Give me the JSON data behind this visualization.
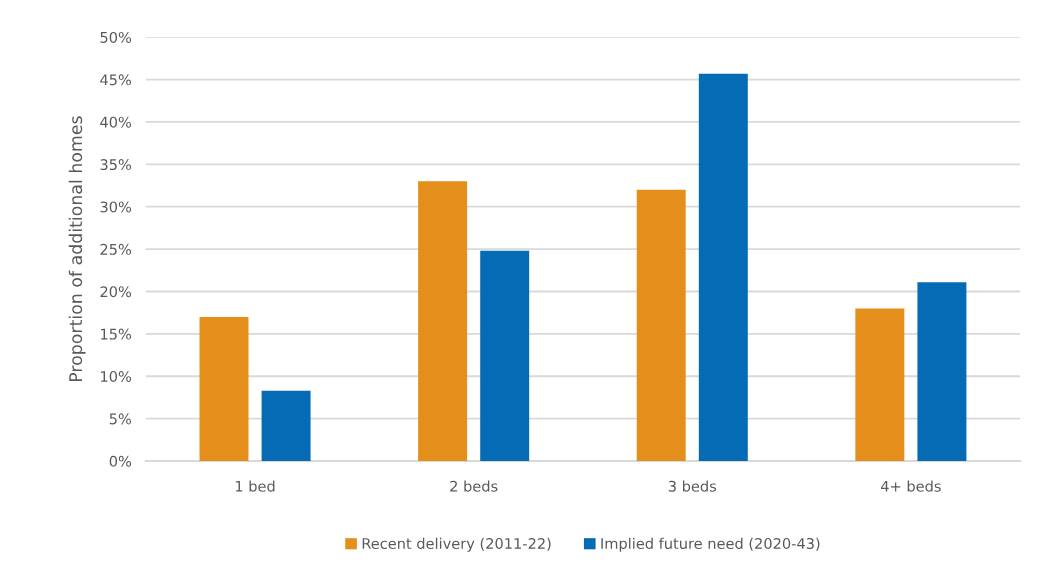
{
  "chart_data": {
    "type": "bar",
    "ylabel": "Proportion of additional homes",
    "categories": [
      "1 bed",
      "2 beds",
      "3 beds",
      "4+ beds"
    ],
    "series": [
      {
        "name": "Recent delivery (2011-22)",
        "color": "#e48f1b",
        "values": [
          17.0,
          33.0,
          32.0,
          18.0
        ]
      },
      {
        "name": "Implied future need (2020-43)",
        "color": "#046bb4",
        "values": [
          8.3,
          24.8,
          45.7,
          21.1
        ]
      }
    ],
    "ylim": [
      0,
      50
    ],
    "yticks": [
      {
        "value": 0,
        "label": "0%"
      },
      {
        "value": 5,
        "label": "5%"
      },
      {
        "value": 10,
        "label": "10%"
      },
      {
        "value": 15,
        "label": "15%"
      },
      {
        "value": 20,
        "label": "20%"
      },
      {
        "value": 25,
        "label": "25%"
      },
      {
        "value": 30,
        "label": "30%"
      },
      {
        "value": 35,
        "label": "35%"
      },
      {
        "value": 40,
        "label": "40%"
      },
      {
        "value": 45,
        "label": "45%"
      },
      {
        "value": 50,
        "label": "50%"
      }
    ],
    "grid": "y",
    "legend": "bottom"
  }
}
